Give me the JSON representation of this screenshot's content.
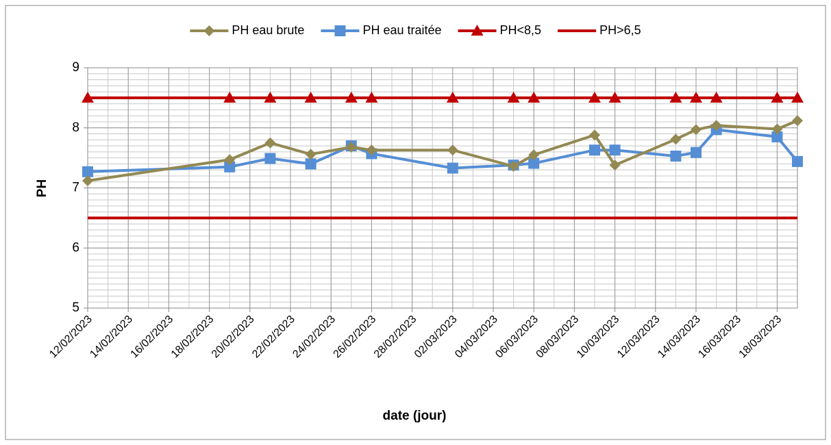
{
  "chart_data": {
    "type": "line",
    "x_label": "date (jour)",
    "y_label": "PH",
    "x": [
      "2023-02-12",
      "2023-02-19",
      "2023-02-21",
      "2023-02-23",
      "2023-02-25",
      "2023-02-26",
      "2023-03-02",
      "2023-03-05",
      "2023-03-06",
      "2023-03-09",
      "2023-03-10",
      "2023-03-13",
      "2023-03-14",
      "2023-03-15",
      "2023-03-18",
      "2023-03-19"
    ],
    "series": [
      {
        "name": "PH eau brute",
        "color": "#938953",
        "marker": "diamond",
        "values": [
          7.12,
          7.47,
          7.75,
          7.56,
          7.68,
          7.63,
          7.63,
          7.36,
          7.55,
          7.88,
          7.38,
          7.81,
          7.97,
          8.04,
          7.98,
          8.12
        ]
      },
      {
        "name": "PH eau traitée",
        "color": "#558ed5",
        "marker": "square",
        "values": [
          7.27,
          7.35,
          7.49,
          7.4,
          7.7,
          7.57,
          7.33,
          7.38,
          7.41,
          7.63,
          7.63,
          7.53,
          7.59,
          7.97,
          7.85,
          7.44
        ]
      },
      {
        "name": "PH<8,5",
        "color": "#c00000",
        "marker": "triangle",
        "values": [
          8.5,
          8.5,
          8.5,
          8.5,
          8.5,
          8.5,
          8.5,
          8.5,
          8.5,
          8.5,
          8.5,
          8.5,
          8.5,
          8.5,
          8.5,
          8.5
        ]
      },
      {
        "name": "PH>6,5",
        "color": "#c00000",
        "marker": "none",
        "values": [
          6.5,
          6.5,
          6.5,
          6.5,
          6.5,
          6.5,
          6.5,
          6.5,
          6.5,
          6.5,
          6.5,
          6.5,
          6.5,
          6.5,
          6.5,
          6.5
        ]
      }
    ],
    "xlim": [
      "2023-02-12",
      "2023-03-19"
    ],
    "xticks": [
      {
        "value": "2023-02-12",
        "label": "12/02/2023"
      },
      {
        "value": "2023-02-14",
        "label": "14/02/2023"
      },
      {
        "value": "2023-02-16",
        "label": "16/02/2023"
      },
      {
        "value": "2023-02-18",
        "label": "18/02/2023"
      },
      {
        "value": "2023-02-20",
        "label": "20/02/2023"
      },
      {
        "value": "2023-02-22",
        "label": "22/02/2023"
      },
      {
        "value": "2023-02-24",
        "label": "24/02/2023"
      },
      {
        "value": "2023-02-26",
        "label": "26/02/2023"
      },
      {
        "value": "2023-02-28",
        "label": "28/02/2023"
      },
      {
        "value": "2023-03-02",
        "label": "02/03/2023"
      },
      {
        "value": "2023-03-04",
        "label": "04/03/2023"
      },
      {
        "value": "2023-03-06",
        "label": "06/03/2023"
      },
      {
        "value": "2023-03-08",
        "label": "08/03/2023"
      },
      {
        "value": "2023-03-10",
        "label": "10/03/2023"
      },
      {
        "value": "2023-03-12",
        "label": "12/03/2023"
      },
      {
        "value": "2023-03-14",
        "label": "14/03/2023"
      },
      {
        "value": "2023-03-16",
        "label": "16/03/2023"
      },
      {
        "value": "2023-03-18",
        "label": "18/03/2023"
      }
    ],
    "ylim": [
      5,
      9
    ],
    "yticks": [
      5,
      6,
      7,
      8,
      9
    ],
    "grid": true,
    "legend": "top"
  }
}
